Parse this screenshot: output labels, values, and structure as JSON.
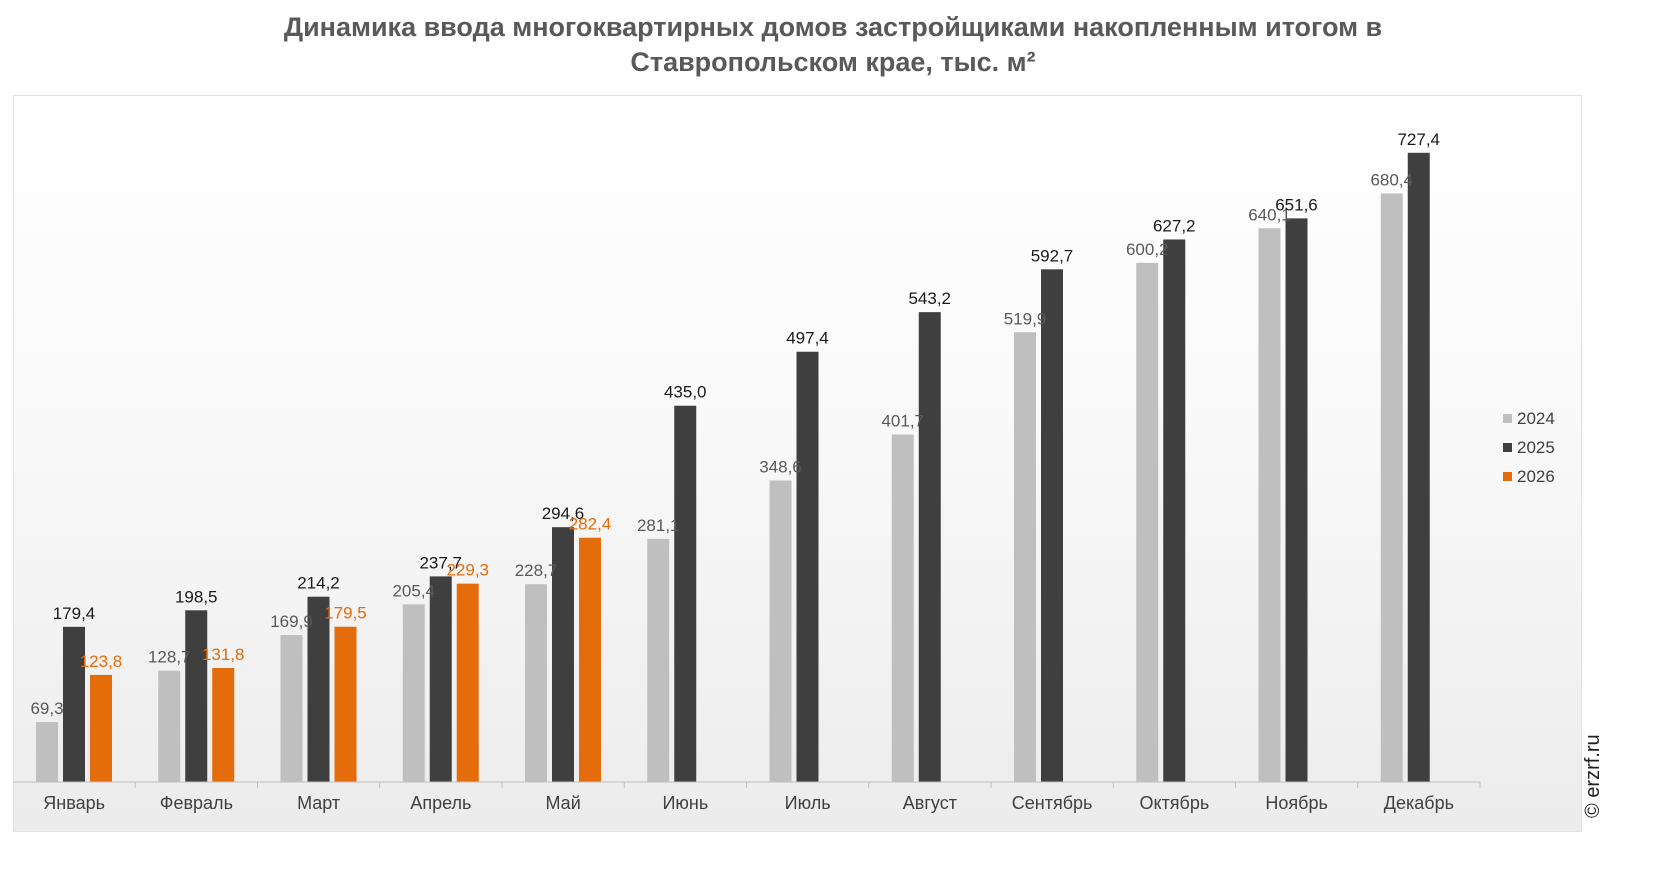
{
  "chart_data": {
    "type": "bar",
    "title": "Динамика ввода многоквартирных домов застройщиками накопленным итогом в Ставропольском крае, тыс. м²",
    "title_lines": [
      "Динамика ввода многоквартирных домов застройщиками накопленным итогом в",
      "Ставропольском крае, тыс. м²"
    ],
    "categories": [
      "Январь",
      "Февраль",
      "Март",
      "Апрель",
      "Май",
      "Июнь",
      "Июль",
      "Август",
      "Сентябрь",
      "Октябрь",
      "Ноябрь",
      "Декабрь"
    ],
    "series": [
      {
        "name": "2024",
        "color": "#bfbfbf",
        "label_color": "#595959",
        "values": [
          69.3,
          128.7,
          169.9,
          205.4,
          228.7,
          281.1,
          348.6,
          401.7,
          519.9,
          600.2,
          640.1,
          680.4
        ],
        "labels": [
          "69,3",
          "128,7",
          "169,9",
          "205,4",
          "228,7",
          "281,1",
          "348,6",
          "401,7",
          "519,9",
          "600,2",
          "640,1",
          "680,4"
        ]
      },
      {
        "name": "2025",
        "color": "#3f3f3f",
        "label_color": "#1a1a1a",
        "values": [
          179.4,
          198.5,
          214.2,
          237.7,
          294.6,
          435.0,
          497.4,
          543.2,
          592.7,
          627.2,
          651.6,
          727.4
        ],
        "labels": [
          "179,4",
          "198,5",
          "214,2",
          "237,7",
          "294,6",
          "435,0",
          "497,4",
          "543,2",
          "592,7",
          "627,2",
          "651,6",
          "727,4"
        ]
      },
      {
        "name": "2026",
        "color": "#e46c0a",
        "label_color": "#e46c0a",
        "values": [
          123.8,
          131.8,
          179.5,
          229.3,
          282.4,
          null,
          null,
          null,
          null,
          null,
          null,
          null
        ],
        "labels": [
          "123,8",
          "131,8",
          "179,5",
          "229,3",
          "282,4",
          null,
          null,
          null,
          null,
          null,
          null,
          null
        ]
      }
    ],
    "ylim": [
      0,
      800
    ],
    "grid": false,
    "legend_position": "right"
  },
  "watermark": "© erzrf.ru"
}
